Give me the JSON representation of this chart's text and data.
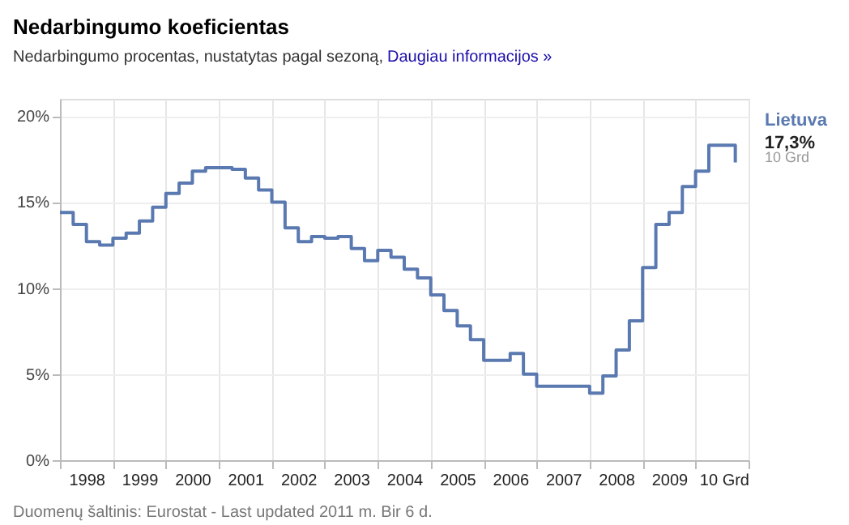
{
  "chart_data": {
    "type": "step",
    "title": "Nedarbingumo koeficientas",
    "subtitle": "Nedarbingumo procentas, nustatytas pagal sezoną,",
    "x": [
      "1998-01",
      "1998-04",
      "1998-07",
      "1998-10",
      "1999-01",
      "1999-04",
      "1999-07",
      "1999-10",
      "2000-01",
      "2000-04",
      "2000-07",
      "2000-10",
      "2001-01",
      "2001-04",
      "2001-07",
      "2001-10",
      "2002-01",
      "2002-04",
      "2002-07",
      "2002-10",
      "2003-01",
      "2003-04",
      "2003-07",
      "2003-10",
      "2004-01",
      "2004-04",
      "2004-07",
      "2004-10",
      "2005-01",
      "2005-04",
      "2005-07",
      "2005-10",
      "2006-01",
      "2006-04",
      "2006-07",
      "2006-10",
      "2007-01",
      "2007-04",
      "2007-07",
      "2007-10",
      "2008-01",
      "2008-04",
      "2008-07",
      "2008-10",
      "2009-01",
      "2009-04",
      "2009-07",
      "2009-10",
      "2010-01",
      "2010-04",
      "2010-07",
      "2010-10"
    ],
    "series": [
      {
        "name": "Lietuva",
        "color": "#5a79b0",
        "values": [
          14.4,
          13.7,
          12.7,
          12.5,
          12.9,
          13.2,
          13.9,
          14.7,
          15.5,
          16.1,
          16.8,
          17.0,
          17.0,
          16.9,
          16.4,
          15.7,
          15.0,
          13.5,
          12.7,
          13.0,
          12.9,
          13.0,
          12.3,
          11.6,
          12.2,
          11.8,
          11.1,
          10.6,
          9.6,
          8.7,
          7.8,
          7.0,
          5.8,
          5.8,
          6.2,
          5.0,
          4.3,
          4.3,
          4.3,
          4.3,
          3.9,
          4.9,
          6.4,
          8.1,
          11.2,
          13.7,
          14.4,
          15.9,
          16.8,
          18.3,
          18.3,
          17.3
        ]
      }
    ],
    "xlim": [
      "1998-01",
      "2011-01"
    ],
    "xticks": [
      {
        "value": "1998-01",
        "label": null
      },
      {
        "value": "1998-07",
        "label": "1998"
      },
      {
        "value": "1999-01",
        "label": null
      },
      {
        "value": "1999-07",
        "label": "1999"
      },
      {
        "value": "2000-01",
        "label": null
      },
      {
        "value": "2000-07",
        "label": "2000"
      },
      {
        "value": "2001-01",
        "label": null
      },
      {
        "value": "2001-07",
        "label": "2001"
      },
      {
        "value": "2002-01",
        "label": null
      },
      {
        "value": "2002-07",
        "label": "2002"
      },
      {
        "value": "2003-01",
        "label": null
      },
      {
        "value": "2003-07",
        "label": "2003"
      },
      {
        "value": "2004-01",
        "label": null
      },
      {
        "value": "2004-07",
        "label": "2004"
      },
      {
        "value": "2005-01",
        "label": null
      },
      {
        "value": "2005-07",
        "label": "2005"
      },
      {
        "value": "2006-01",
        "label": null
      },
      {
        "value": "2006-07",
        "label": "2006"
      },
      {
        "value": "2007-01",
        "label": null
      },
      {
        "value": "2007-07",
        "label": "2007"
      },
      {
        "value": "2008-01",
        "label": null
      },
      {
        "value": "2008-07",
        "label": "2008"
      },
      {
        "value": "2009-01",
        "label": null
      },
      {
        "value": "2009-07",
        "label": "2009"
      },
      {
        "value": "2010-01",
        "label": null
      },
      {
        "value": "2011-01",
        "label": "10 Grd"
      }
    ],
    "ylim": [
      0,
      21
    ],
    "yticks": [
      {
        "value": 0,
        "label": "0%"
      },
      {
        "value": 5,
        "label": "5%"
      },
      {
        "value": 10,
        "label": "10%"
      },
      {
        "value": 15,
        "label": "15%"
      },
      {
        "value": 20,
        "label": "20%"
      }
    ],
    "grid": true,
    "legend": false,
    "annotations": [
      "Daugiau informacijos »",
      {
        "text": "17,3%",
        "x": "2010-10",
        "y": 17.3
      },
      "10 Grd",
      "Duomenų šaltinis: Eurostat - Last updated 2011 m. Bir 6 d."
    ]
  }
}
